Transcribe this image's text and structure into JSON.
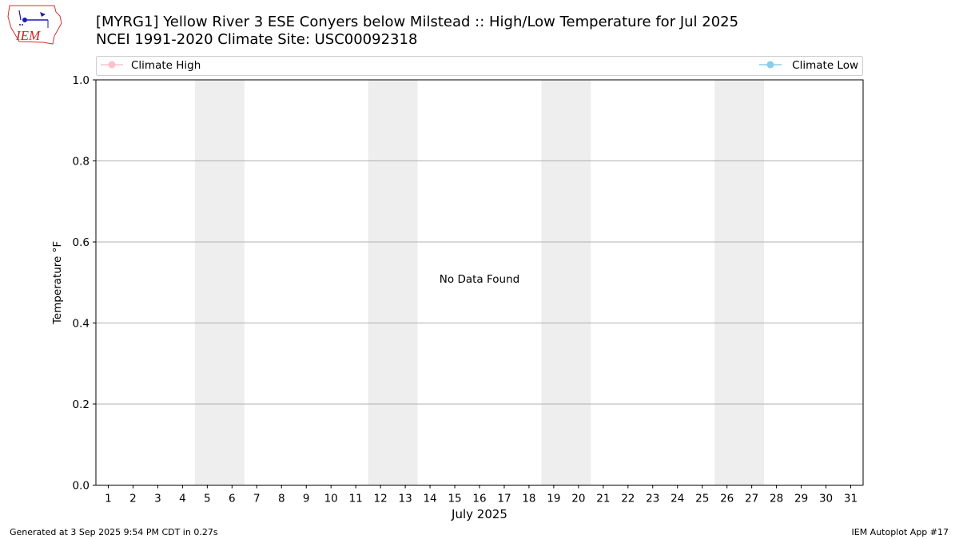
{
  "logo": {
    "text": "IEM",
    "icon": "iem-logo-icon"
  },
  "header": {
    "title_line1": "[MYRG1] Yellow River 3 ESE Conyers below Milstead :: High/Low Temperature for Jul 2025",
    "title_line2": "NCEI 1991-2020 Climate Site: USC00092318"
  },
  "footer": {
    "left": "Generated at 3 Sep 2025 9:54 PM CDT in 0.27s",
    "right": "IEM Autoplot App #17"
  },
  "chart_data": {
    "type": "line",
    "xlabel": "July 2025",
    "ylabel": "Temperature °F",
    "x_categories": [
      "1",
      "2",
      "3",
      "4",
      "5",
      "6",
      "7",
      "8",
      "9",
      "10",
      "11",
      "12",
      "13",
      "14",
      "15",
      "16",
      "17",
      "18",
      "19",
      "20",
      "21",
      "22",
      "23",
      "24",
      "25",
      "26",
      "27",
      "28",
      "29",
      "30",
      "31"
    ],
    "ylim": [
      0.0,
      1.0
    ],
    "yticks": [
      "0.0",
      "0.2",
      "0.4",
      "0.6",
      "0.8",
      "1.0"
    ],
    "y_gridlines": [
      0.2,
      0.4,
      0.6,
      0.8
    ],
    "weekend_bands": [
      [
        5,
        6
      ],
      [
        12,
        13
      ],
      [
        19,
        20
      ],
      [
        26,
        27
      ]
    ],
    "series": [
      {
        "name": "Climate High",
        "color": "#ffc0cb",
        "values": []
      },
      {
        "name": "Climate Low",
        "color": "#87ceeb",
        "values": []
      }
    ],
    "legend": {
      "placement": "top",
      "entries": [
        "Climate High",
        "Climate Low"
      ]
    },
    "annotation": "No Data Found",
    "colors": {
      "band": "#eeeeee",
      "grid": "#b0b0b0",
      "legend_border": "#cccccc"
    }
  }
}
